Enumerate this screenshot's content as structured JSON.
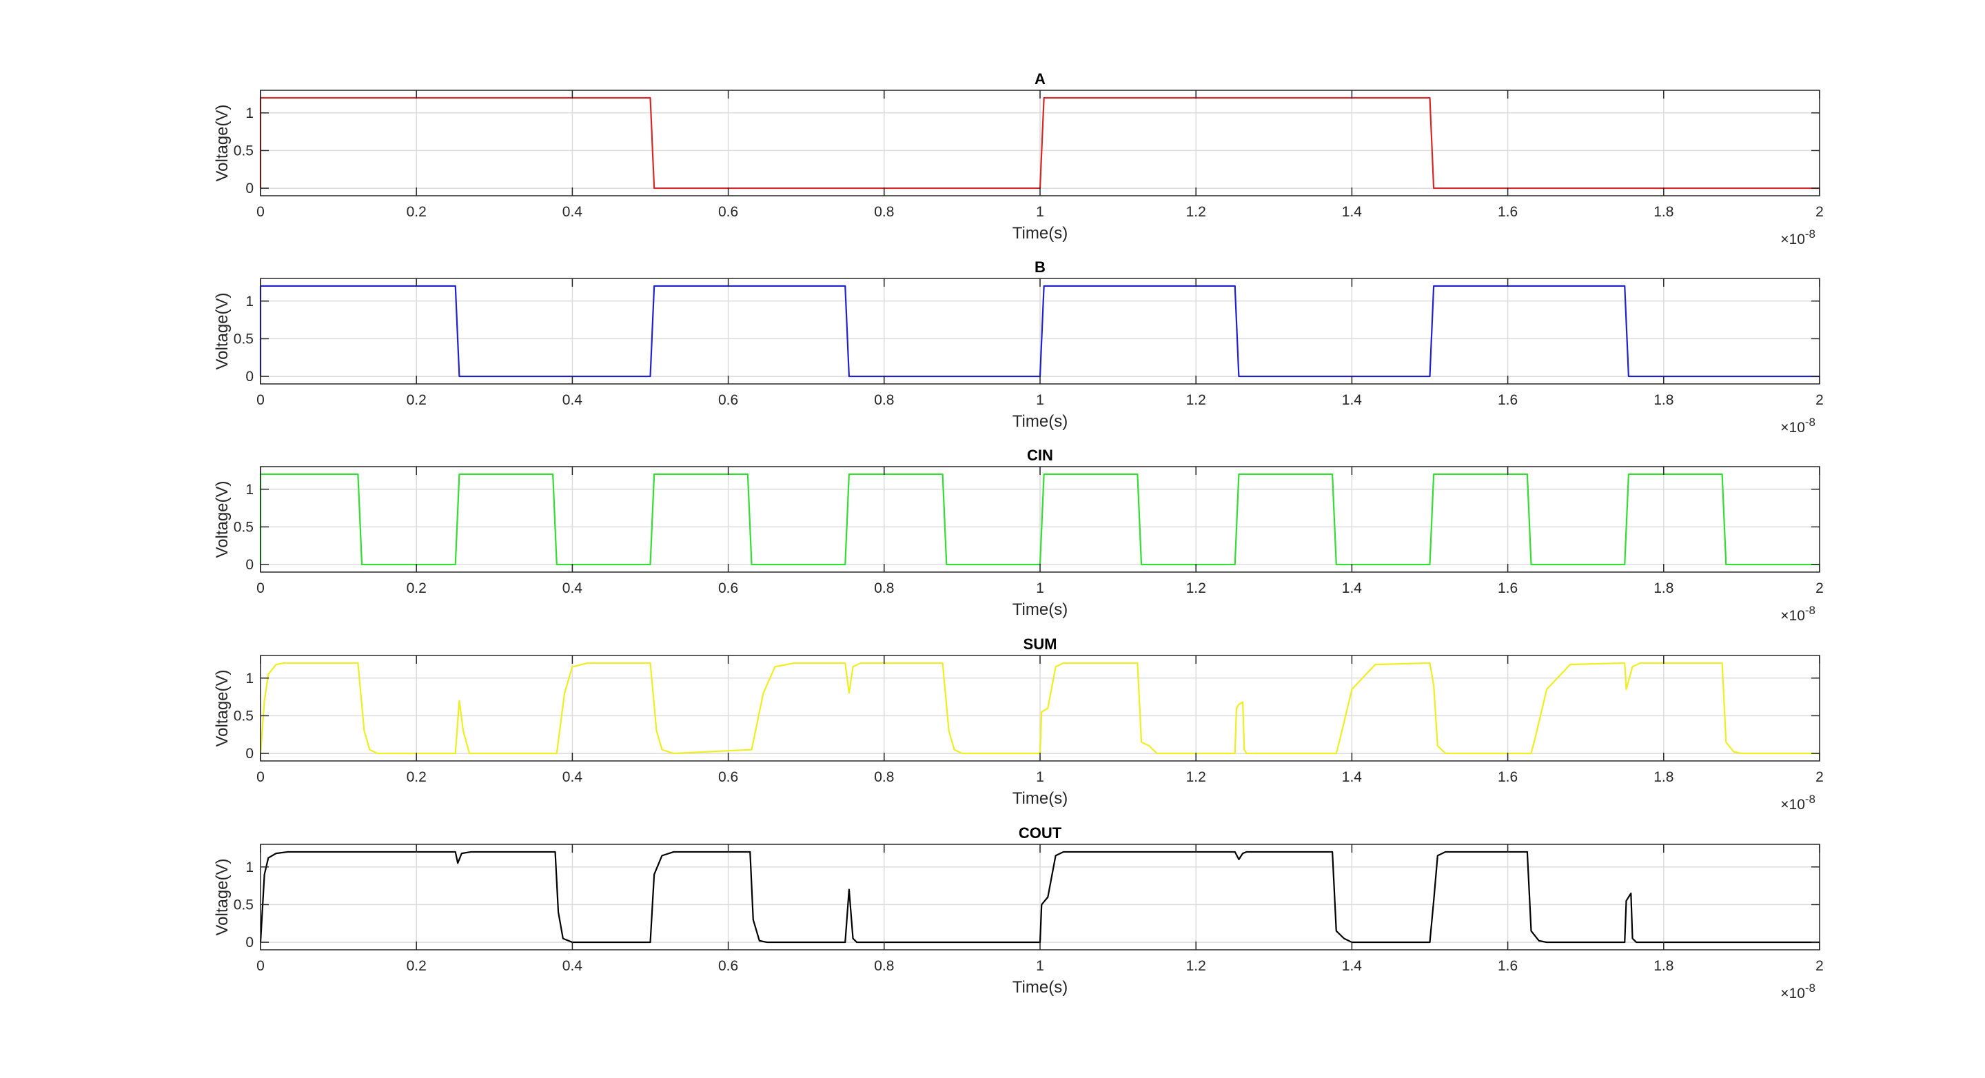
{
  "chart_data": [
    {
      "type": "line",
      "title": "A",
      "xlabel": "Time(s)",
      "ylabel": "Voltage(V)",
      "exponent_label": "×10",
      "exponent": "-8",
      "x_ticks": [
        "0",
        "0.2",
        "0.4",
        "0.6",
        "0.8",
        "1",
        "1.2",
        "1.4",
        "1.6",
        "1.8",
        "2"
      ],
      "y_ticks": [
        "0",
        "0.5",
        "1"
      ],
      "xlim": [
        0,
        2e-08
      ],
      "ylim": [
        -0.1,
        1.3
      ],
      "grid": true,
      "color": "#d62728",
      "series": [
        {
          "x": [
            0,
            0,
            5e-09,
            5.05e-09,
            1e-08,
            1.005e-08,
            1.5e-08,
            1.505e-08,
            2e-08
          ],
          "y": [
            0,
            1.2,
            1.2,
            0,
            0,
            1.2,
            1.2,
            0,
            0
          ]
        }
      ]
    },
    {
      "type": "line",
      "title": "B",
      "xlabel": "Time(s)",
      "ylabel": "Voltage(V)",
      "exponent_label": "×10",
      "exponent": "-8",
      "x_ticks": [
        "0",
        "0.2",
        "0.4",
        "0.6",
        "0.8",
        "1",
        "1.2",
        "1.4",
        "1.6",
        "1.8",
        "2"
      ],
      "y_ticks": [
        "0",
        "0.5",
        "1"
      ],
      "xlim": [
        0,
        2e-08
      ],
      "ylim": [
        -0.1,
        1.3
      ],
      "grid": true,
      "color": "#2020d0",
      "series": [
        {
          "x": [
            0,
            0,
            2.5e-09,
            2.55e-09,
            5e-09,
            5.05e-09,
            7.5e-09,
            7.55e-09,
            1e-08,
            1.005e-08,
            1.25e-08,
            1.255e-08,
            1.5e-08,
            1.505e-08,
            1.75e-08,
            1.755e-08,
            2e-08
          ],
          "y": [
            0,
            1.2,
            1.2,
            0,
            0,
            1.2,
            1.2,
            0,
            0,
            1.2,
            1.2,
            0,
            0,
            1.2,
            1.2,
            0,
            0
          ]
        }
      ]
    },
    {
      "type": "line",
      "title": "CIN",
      "xlabel": "Time(s)",
      "ylabel": "Voltage(V)",
      "exponent_label": "×10",
      "exponent": "-8",
      "x_ticks": [
        "0",
        "0.2",
        "0.4",
        "0.6",
        "0.8",
        "1",
        "1.2",
        "1.4",
        "1.6",
        "1.8",
        "2"
      ],
      "y_ticks": [
        "0",
        "0.5",
        "1"
      ],
      "xlim": [
        0,
        2e-08
      ],
      "ylim": [
        -0.1,
        1.3
      ],
      "grid": true,
      "color": "#33dd33",
      "series": [
        {
          "x": [
            0,
            0,
            1.25e-09,
            1.3e-09,
            2.5e-09,
            2.55e-09,
            3.75e-09,
            3.8e-09,
            5e-09,
            5.05e-09,
            6.25e-09,
            6.3e-09,
            7.5e-09,
            7.55e-09,
            8.75e-09,
            8.8e-09,
            1e-08,
            1.005e-08,
            1.125e-08,
            1.13e-08,
            1.25e-08,
            1.255e-08,
            1.375e-08,
            1.38e-08,
            1.5e-08,
            1.505e-08,
            1.625e-08,
            1.63e-08,
            1.75e-08,
            1.755e-08,
            1.875e-08,
            1.88e-08,
            2e-08
          ],
          "y": [
            0,
            1.2,
            1.2,
            0,
            0,
            1.2,
            1.2,
            0,
            0,
            1.2,
            1.2,
            0,
            0,
            1.2,
            1.2,
            0,
            0,
            1.2,
            1.2,
            0,
            0,
            1.2,
            1.2,
            0,
            0,
            1.2,
            1.2,
            0,
            0,
            1.2,
            1.2,
            0,
            0
          ]
        }
      ]
    },
    {
      "type": "line",
      "title": "SUM",
      "xlabel": "Time(s)",
      "ylabel": "Voltage(V)",
      "exponent_label": "×10",
      "exponent": "-8",
      "x_ticks": [
        "0",
        "0.2",
        "0.4",
        "0.6",
        "0.8",
        "1",
        "1.2",
        "1.4",
        "1.6",
        "1.8",
        "2"
      ],
      "y_ticks": [
        "0",
        "0.5",
        "1"
      ],
      "xlim": [
        0,
        2e-08
      ],
      "ylim": [
        -0.1,
        1.3
      ],
      "grid": true,
      "color": "#eeee22",
      "series": [
        {
          "x": [
            0,
            5e-11,
            1e-10,
            2e-10,
            3e-10,
            1.25e-09,
            1.33e-09,
            1.4e-09,
            1.5e-09,
            2.5e-09,
            2.55e-09,
            2.6e-09,
            2.68e-09,
            3.8e-09,
            3.9e-09,
            4e-09,
            4.2e-09,
            5e-09,
            5.08e-09,
            5.15e-09,
            5.3e-09,
            6.3e-09,
            6.45e-09,
            6.6e-09,
            6.85e-09,
            7.5e-09,
            7.55e-09,
            7.6e-09,
            7.7e-09,
            8.75e-09,
            8.83e-09,
            8.9e-09,
            9e-09,
            1e-08,
            1.002e-08,
            1.01e-08,
            1.02e-08,
            1.03e-08,
            1.125e-08,
            1.13e-08,
            1.14e-08,
            1.15e-08,
            1.25e-08,
            1.252e-08,
            1.255e-08,
            1.26e-08,
            1.262e-08,
            1.265e-08,
            1.38e-08,
            1.385e-08,
            1.4e-08,
            1.43e-08,
            1.5e-08,
            1.505e-08,
            1.51e-08,
            1.52e-08,
            1.63e-08,
            1.635e-08,
            1.65e-08,
            1.68e-08,
            1.75e-08,
            1.752e-08,
            1.76e-08,
            1.77e-08,
            1.875e-08,
            1.88e-08,
            1.89e-08,
            1.9e-08,
            2e-08
          ],
          "y": [
            0,
            0.7,
            1.05,
            1.18,
            1.2,
            1.2,
            0.3,
            0.05,
            0,
            0,
            0.7,
            0.3,
            0,
            0,
            0.8,
            1.15,
            1.2,
            1.2,
            0.3,
            0.05,
            0,
            0.05,
            0.8,
            1.15,
            1.2,
            1.2,
            0.8,
            1.15,
            1.2,
            1.2,
            0.3,
            0.05,
            0,
            0,
            0.55,
            0.6,
            1.15,
            1.2,
            1.2,
            0.15,
            0.1,
            0,
            0,
            0.6,
            0.65,
            0.68,
            0.05,
            0,
            0,
            0.2,
            0.85,
            1.18,
            1.2,
            0.9,
            0.1,
            0,
            0,
            0.2,
            0.85,
            1.18,
            1.2,
            0.85,
            1.15,
            1.2,
            1.2,
            0.15,
            0.02,
            0,
            0
          ]
        }
      ]
    },
    {
      "type": "line",
      "title": "COUT",
      "xlabel": "Time(s)",
      "ylabel": "Voltage(V)",
      "exponent_label": "×10",
      "exponent": "-8",
      "x_ticks": [
        "0",
        "0.2",
        "0.4",
        "0.6",
        "0.8",
        "1",
        "1.2",
        "1.4",
        "1.6",
        "1.8",
        "2"
      ],
      "y_ticks": [
        "0",
        "0.5",
        "1"
      ],
      "xlim": [
        0,
        2e-08
      ],
      "ylim": [
        -0.1,
        1.3
      ],
      "grid": true,
      "color": "#000000",
      "series": [
        {
          "x": [
            0,
            5e-11,
            1e-10,
            2e-10,
            3.5e-10,
            2.5e-09,
            2.53e-09,
            2.58e-09,
            2.7e-09,
            3.78e-09,
            3.82e-09,
            3.88e-09,
            4e-09,
            5e-09,
            5.05e-09,
            5.15e-09,
            5.3e-09,
            6.28e-09,
            6.32e-09,
            6.4e-09,
            6.5e-09,
            7.5e-09,
            7.55e-09,
            7.6e-09,
            7.65e-09,
            1e-08,
            1.002e-08,
            1.01e-08,
            1.02e-08,
            1.03e-08,
            1.25e-08,
            1.255e-08,
            1.26e-08,
            1.265e-08,
            1.375e-08,
            1.38e-08,
            1.39e-08,
            1.4e-08,
            1.5e-08,
            1.505e-08,
            1.51e-08,
            1.52e-08,
            1.625e-08,
            1.63e-08,
            1.64e-08,
            1.65e-08,
            1.75e-08,
            1.752e-08,
            1.758e-08,
            1.76e-08,
            1.765e-08,
            2e-08
          ],
          "y": [
            0,
            0.9,
            1.12,
            1.18,
            1.2,
            1.2,
            1.05,
            1.18,
            1.2,
            1.2,
            0.4,
            0.05,
            0,
            0,
            0.9,
            1.15,
            1.2,
            1.2,
            0.3,
            0.02,
            0,
            0,
            0.7,
            0.05,
            0,
            0,
            0.5,
            0.6,
            1.15,
            1.2,
            1.2,
            1.1,
            1.18,
            1.2,
            1.2,
            0.15,
            0.05,
            0,
            0,
            0.55,
            1.15,
            1.2,
            1.2,
            0.15,
            0.02,
            0,
            0,
            0.55,
            0.65,
            0.05,
            0,
            0
          ]
        }
      ]
    }
  ]
}
